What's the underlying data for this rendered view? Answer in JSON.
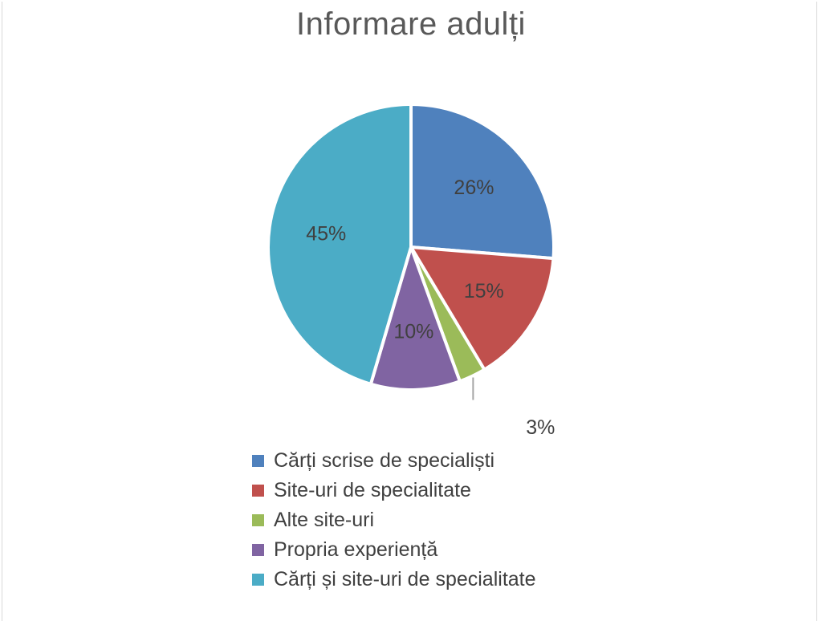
{
  "chart_data": {
    "type": "pie",
    "title": "Informare adulți",
    "slices": [
      {
        "label": "Cărți scrise de specialiști",
        "value": 26,
        "display": "26%",
        "color": "#4F81BD"
      },
      {
        "label": "Site-uri de specialitate",
        "value": 15,
        "display": "15%",
        "color": "#C0504D"
      },
      {
        "label": "Alte site-uri",
        "value": 3,
        "display": "3%",
        "color": "#9BBB59"
      },
      {
        "label": "Propria experiență",
        "value": 10,
        "display": "10%",
        "color": "#8064A2"
      },
      {
        "label": "Cărți și site-uri de specialitate",
        "value": 45,
        "display": "45%",
        "color": "#4BACC6"
      }
    ],
    "legend_position": "bottom"
  }
}
